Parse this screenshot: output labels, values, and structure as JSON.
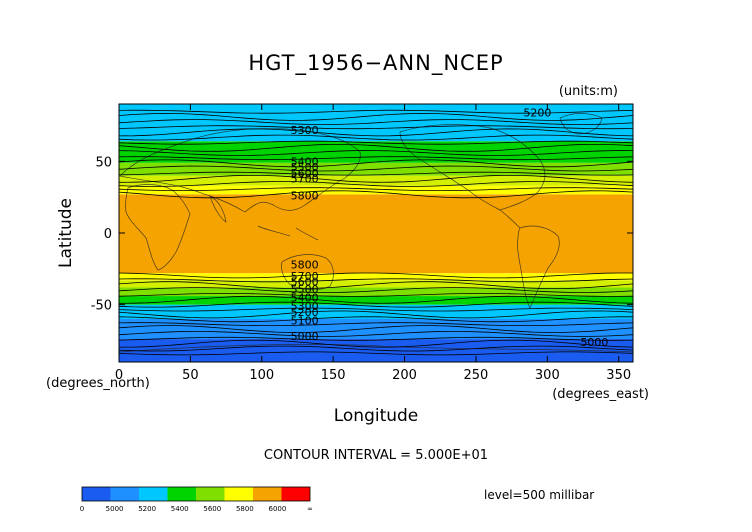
{
  "chart_data": {
    "type": "contour",
    "title": "HGT_1956−ANN_NCEP",
    "units_label": "(units:m)",
    "xlabel": "Longitude",
    "ylabel": "Latitude",
    "x_unit_label": "(degrees_east)",
    "y_unit_label": "(degrees_north)",
    "xlim": [
      0,
      360
    ],
    "ylim": [
      -90,
      90
    ],
    "x_ticks": [
      0,
      50,
      100,
      150,
      200,
      250,
      300,
      350
    ],
    "y_ticks": [
      -50,
      0,
      50
    ],
    "contour_interval_text": "CONTOUR INTERVAL = 5.000E+01",
    "level_text": "level=500 millibar",
    "filled_bands": [
      {
        "lat_range": [
          -90,
          -74
        ],
        "value_range": [
          4900,
          5100
        ],
        "color": "#1a5cf0"
      },
      {
        "lat_range": [
          -74,
          -60
        ],
        "value_range": [
          5100,
          5300
        ],
        "color": "#1e90ff"
      },
      {
        "lat_range": [
          -60,
          -50
        ],
        "value_range": [
          5300,
          5400
        ],
        "color": "#00c8ff"
      },
      {
        "lat_range": [
          -50,
          -44
        ],
        "value_range": [
          5400,
          5500
        ],
        "color": "#00d400"
      },
      {
        "lat_range": [
          -44,
          -38
        ],
        "value_range": [
          5500,
          5600
        ],
        "color": "#7fe000"
      },
      {
        "lat_range": [
          -38,
          -33
        ],
        "value_range": [
          5600,
          5700
        ],
        "color": "#d4f000"
      },
      {
        "lat_range": [
          -33,
          -28
        ],
        "value_range": [
          5700,
          5800
        ],
        "color": "#ffff00"
      },
      {
        "lat_range": [
          -28,
          27
        ],
        "value_range": [
          5800,
          5900
        ],
        "color": "#f5a300"
      },
      {
        "lat_range": [
          27,
          33
        ],
        "value_range": [
          5700,
          5800
        ],
        "color": "#ffff00"
      },
      {
        "lat_range": [
          33,
          40
        ],
        "value_range": [
          5600,
          5700
        ],
        "color": "#d4f000"
      },
      {
        "lat_range": [
          40,
          49
        ],
        "value_range": [
          5500,
          5600
        ],
        "color": "#7fe000"
      },
      {
        "lat_range": [
          49,
          64
        ],
        "value_range": [
          5400,
          5500
        ],
        "color": "#00d400"
      },
      {
        "lat_range": [
          64,
          90
        ],
        "value_range": [
          5200,
          5400
        ],
        "color": "#00c8ff"
      }
    ],
    "contour_labels": [
      {
        "text": "5200",
        "lon": 293,
        "lat": 84
      },
      {
        "text": "5300",
        "lon": 130,
        "lat": 72
      },
      {
        "text": "5400",
        "lon": 130,
        "lat": 50
      },
      {
        "text": "5500",
        "lon": 130,
        "lat": 46
      },
      {
        "text": "5600",
        "lon": 130,
        "lat": 42
      },
      {
        "text": "5700",
        "lon": 130,
        "lat": 38
      },
      {
        "text": "5800",
        "lon": 130,
        "lat": 26
      },
      {
        "text": "5800",
        "lon": 130,
        "lat": -22
      },
      {
        "text": "5700",
        "lon": 130,
        "lat": -30
      },
      {
        "text": "5600",
        "lon": 130,
        "lat": -34
      },
      {
        "text": "5500",
        "lon": 130,
        "lat": -39
      },
      {
        "text": "5400",
        "lon": 130,
        "lat": -45
      },
      {
        "text": "5300",
        "lon": 130,
        "lat": -51
      },
      {
        "text": "5200",
        "lon": 130,
        "lat": -55
      },
      {
        "text": "5100",
        "lon": 130,
        "lat": -61
      },
      {
        "text": "5000",
        "lon": 130,
        "lat": -72
      },
      {
        "text": "5000",
        "lon": 333,
        "lat": -76
      }
    ],
    "colorbar": {
      "labels": [
        "0",
        "5000",
        "5200",
        "5400",
        "5600",
        "5800",
        "6000",
        "∞"
      ],
      "colors": [
        "#1a5cf0",
        "#1e90ff",
        "#00c8ff",
        "#00d400",
        "#7fe000",
        "#ffff00",
        "#f5a300",
        "#ff0000"
      ]
    }
  }
}
